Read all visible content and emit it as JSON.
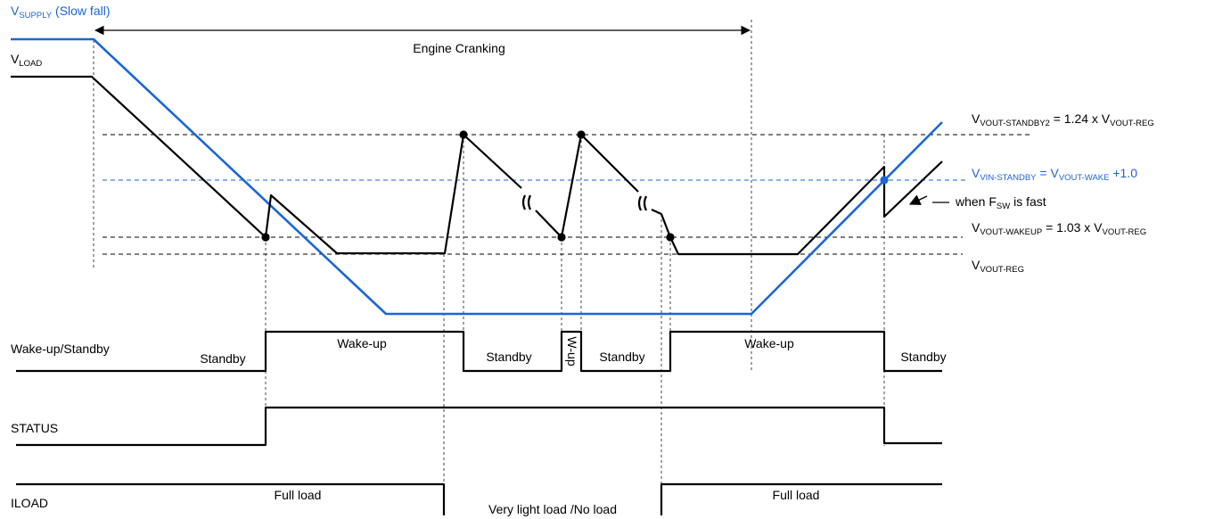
{
  "colors": {
    "supply": "#1a66d6",
    "load": "#000000"
  },
  "labels": {
    "vsupply_v": "V",
    "vsupply_sub": "SUPPLY",
    "vsupply_note": " (Slow fall)",
    "vload_v": "V",
    "vload_sub": "LOAD",
    "engine_cranking": "Engine Cranking",
    "when_fsw_1": "when F",
    "when_fsw_sub": "SW",
    "when_fsw_2": " is fast",
    "wakeup_standby": "Wake-up/Standby",
    "status": "STATUS",
    "iload": "ILOAD"
  },
  "thresholds": {
    "standby2": {
      "v": "V",
      "sub1": "VOUT-STANDBY2",
      "mid": " = 1.24 x V",
      "sub2": "VOUT-REG"
    },
    "vin_standby": {
      "v": "V",
      "sub1": "VIN-STANDBY",
      "mid": " = V",
      "sub2": "VOUT-WAKE",
      "end": " +1.0"
    },
    "wakeup": {
      "v": "V",
      "sub1": "VOUT-WAKEUP",
      "mid": " = 1.03 x V",
      "sub2": "VOUT-REG"
    },
    "reg": {
      "v": "V",
      "sub1": "VOUT-REG"
    }
  },
  "state_labels": {
    "standby_1": "Standby",
    "wakeup_1": "Wake-up",
    "standby_2": "Standby",
    "wup": "W-up",
    "standby_3": "Standby",
    "wakeup_2": "Wake-up",
    "standby_4": "Standby"
  },
  "load_labels": {
    "full_load_1": "Full load",
    "light_load": "Very light load /No load",
    "full_load_2": "Full load"
  }
}
